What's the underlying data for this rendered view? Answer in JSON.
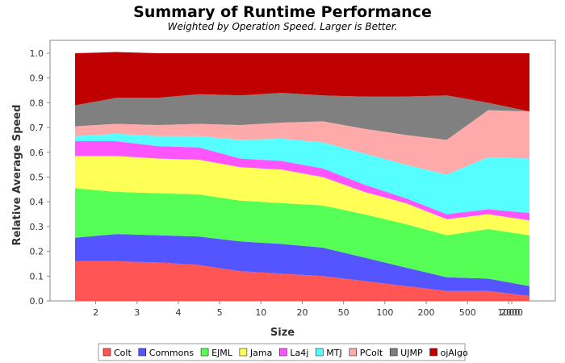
{
  "chart_data": {
    "type": "area",
    "stacked": true,
    "title": "Summary of Runtime Performance",
    "subtitle": "Weighted by Operation Speed. Larger is Better.",
    "xlabel": "Size",
    "ylabel": "Relative Average Speed",
    "ylim": [
      0.0,
      1.0
    ],
    "yticks": [
      "0.0",
      "0.1",
      "0.2",
      "0.3",
      "0.4",
      "0.5",
      "0.6",
      "0.7",
      "0.8",
      "0.9",
      "1.0"
    ],
    "categories": [
      "2",
      "3",
      "4",
      "5",
      "10",
      "20",
      "50",
      "100",
      "200",
      "500",
      "1000",
      "2000"
    ],
    "grid": false,
    "legend_position": "bottom",
    "series": [
      {
        "name": "Colt",
        "color": "#ff5555",
        "values": [
          0.16,
          0.16,
          0.155,
          0.145,
          0.12,
          0.11,
          0.1,
          0.08,
          0.06,
          0.04,
          0.04,
          0.02
        ]
      },
      {
        "name": "Commons",
        "color": "#5555ff",
        "values": [
          0.095,
          0.11,
          0.11,
          0.115,
          0.12,
          0.12,
          0.115,
          0.095,
          0.075,
          0.055,
          0.05,
          0.04
        ]
      },
      {
        "name": "EJML",
        "color": "#55ff55",
        "values": [
          0.2,
          0.17,
          0.17,
          0.17,
          0.165,
          0.165,
          0.17,
          0.175,
          0.175,
          0.17,
          0.2,
          0.205
        ]
      },
      {
        "name": "Jama",
        "color": "#ffff55",
        "values": [
          0.13,
          0.145,
          0.14,
          0.14,
          0.135,
          0.135,
          0.115,
          0.09,
          0.085,
          0.065,
          0.06,
          0.06
        ]
      },
      {
        "name": "La4j",
        "color": "#ff55ff",
        "values": [
          0.06,
          0.06,
          0.05,
          0.05,
          0.035,
          0.035,
          0.035,
          0.03,
          0.02,
          0.02,
          0.02,
          0.03
        ]
      },
      {
        "name": "MTJ",
        "color": "#55ffff",
        "values": [
          0.02,
          0.03,
          0.04,
          0.045,
          0.075,
          0.09,
          0.105,
          0.125,
          0.135,
          0.16,
          0.21,
          0.22
        ]
      },
      {
        "name": "PColt",
        "color": "#ffaaaa",
        "values": [
          0.04,
          0.04,
          0.045,
          0.05,
          0.06,
          0.065,
          0.085,
          0.1,
          0.12,
          0.14,
          0.19,
          0.19
        ]
      },
      {
        "name": "UJMP",
        "color": "#808080",
        "values": [
          0.085,
          0.105,
          0.11,
          0.12,
          0.12,
          0.12,
          0.105,
          0.13,
          0.155,
          0.18,
          0.03,
          0.0
        ]
      },
      {
        "name": "ojAlgo",
        "color": "#c00000",
        "values": [
          0.21,
          0.185,
          0.18,
          0.165,
          0.17,
          0.16,
          0.17,
          0.175,
          0.175,
          0.17,
          0.2,
          0.235
        ]
      }
    ]
  }
}
